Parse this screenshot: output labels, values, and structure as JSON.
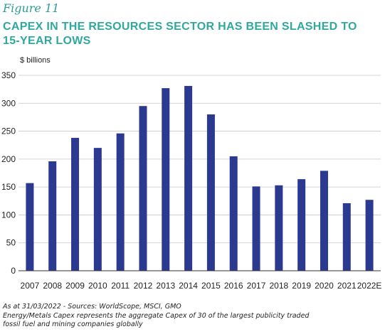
{
  "figure_label": "Figure 11",
  "title_lines": [
    "CAPEX IN THE RESOURCES SECTOR HAS BEEN SLASHED TO",
    "15-YEAR LOWS"
  ],
  "notes": {
    "source": "As at 31/03/2022 - Sources: WorldScope, MSCI, GMO",
    "line2": "Energy/Metals Capex represents the aggregate Capex of 30 of the largest publicity traded",
    "line3": "fossil fuel and mining companies globally"
  },
  "chart_data": {
    "type": "bar",
    "title": "CAPEX IN THE RESOURCES SECTOR HAS BEEN SLASHED TO 15-YEAR LOWS",
    "unit_label": "$ billions",
    "categories": [
      "2007",
      "2008",
      "2009",
      "2010",
      "2011",
      "2012",
      "2013",
      "2014",
      "2015",
      "2016",
      "2017",
      "2018",
      "2019",
      "2020",
      "2021",
      "2022E"
    ],
    "values": [
      157,
      196,
      238,
      220,
      246,
      295,
      327,
      331,
      280,
      205,
      151,
      153,
      164,
      179,
      121,
      127
    ],
    "ylim": [
      0,
      350
    ],
    "yticks": [
      0,
      50,
      100,
      150,
      200,
      250,
      300,
      350
    ],
    "grid": "horizontal",
    "legend": "none",
    "bar_color": "#2b3990",
    "grid_color": "#c8c8c8",
    "axis_color": "#333333"
  }
}
